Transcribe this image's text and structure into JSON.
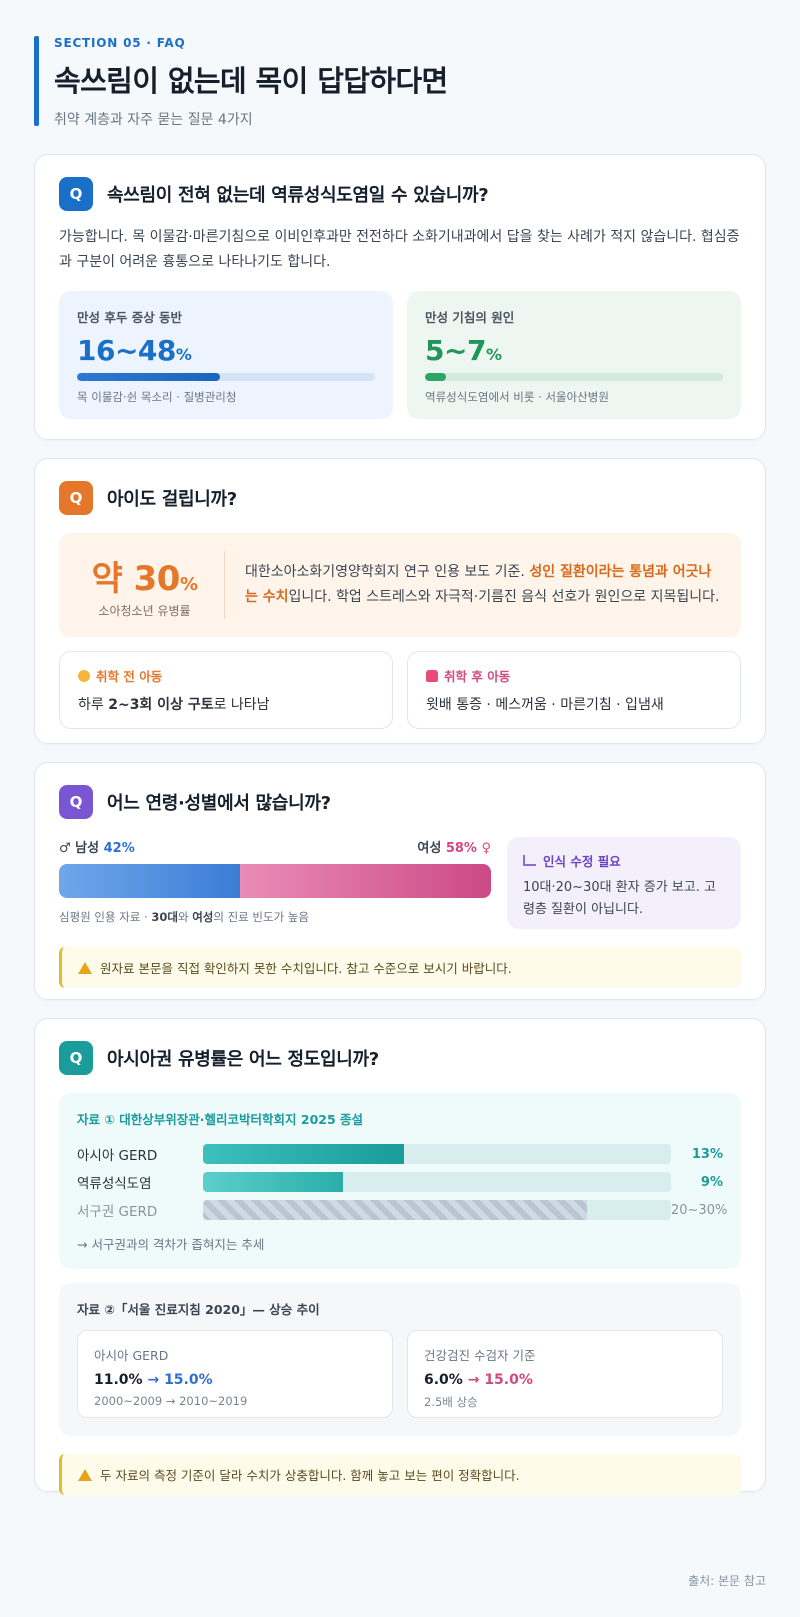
{
  "header": {
    "kicker": "SECTION 05 · FAQ",
    "title": "속쓰림이 없는데 목이 답답하다면",
    "subtitle": "취약 계층과 자주 묻는 질문 4가지"
  },
  "q1": {
    "badge": "Q",
    "title": "속쓰림이 전혀 없는데 역류성식도염일 수 있습니까?",
    "answer": "가능합니다. 목 이물감·마른기침으로 이비인후과만 전전하다 소화기내과에서 답을 찾는 사례가 적지 않습니다. 협심증과 구분이 어려운 흉통으로 나타나기도 합니다.",
    "stat_a": {
      "label": "만성 후두 증상 동반",
      "value": "16~48",
      "unit": "%",
      "fill_pct": 48,
      "source": "목 이물감·쉰 목소리 · 질병관리청"
    },
    "stat_b": {
      "label": "만성 기침의 원인",
      "value": "5~7",
      "unit": "%",
      "fill_pct": 7,
      "source": "역류성식도염에서 비롯 · 서울아산병원"
    }
  },
  "q2": {
    "badge": "Q",
    "title": "아이도 걸립니까?",
    "big_prefix": "약 30",
    "big_unit": "%",
    "big_caption": "소아청소년 유병률",
    "text_pre": "대한소아소화기영양학회지 연구 인용 보도 기준. ",
    "text_hl": "성인 질환이라는 통념과 어긋나는 수치",
    "text_post": "입니다. 학업 스트레스와 자극적·기름진 음식 선호가 원인으로 지목됩니다.",
    "pre_school": {
      "label": "취학 전 아동",
      "desc_pre": "하루 ",
      "desc_bold": "2~3회 이상 구토",
      "desc_post": "로 나타남"
    },
    "post_school": {
      "label": "취학 후 아동",
      "desc": "윗배 통증 · 메스꺼움 · 마른기침 · 입냄새"
    }
  },
  "q3": {
    "badge": "Q",
    "title": "어느 연령·성별에서 많습니까?",
    "male_label": "♂ 남성",
    "male_pct": 42,
    "male_text": "42%",
    "female_label": "여성",
    "female_pct": 58,
    "female_text": "58% ♀",
    "source_pre": "심평원 인용 자료 · ",
    "source_bold1": "30대",
    "source_mid": "와 ",
    "source_bold2": "여성",
    "source_post": "의 진료 빈도가 높음",
    "note_title": "인식 수정 필요",
    "note_text": "10대·20~30대 환자 증가 보고. 고령층 질환이 아닙니다.",
    "warning": "원자료 본문을 직접 확인하지 못한 수치입니다. 참고 수준으로 보시기 바랍니다."
  },
  "q4": {
    "badge": "Q",
    "title": "아시아권 유병률은 어느 정도입니까?",
    "source1_title": "자료 ① 대한상부위장관·헬리코박터학회지 2025 종설",
    "bars": [
      {
        "label": "아시아 GERD",
        "value": 13,
        "text": "13%"
      },
      {
        "label": "역류성식도염",
        "value": 9,
        "text": "9%"
      },
      {
        "label": "서구권 GERD",
        "value": 30,
        "text": "20~30%"
      }
    ],
    "trend": "→ 서구권과의 격차가 좁혀지는 추세",
    "source2_title": "자료 ②「서울 진료지침 2020」— 상승 추이",
    "box_a": {
      "label": "아시아 GERD",
      "from": "11.0%",
      "arrow": "→",
      "to": "15.0%",
      "sub": "2000~2009 → 2010~2019"
    },
    "box_b": {
      "label": "건강검진 수검자 기준",
      "from": "6.0%",
      "arrow": "→",
      "to": "15.0%",
      "sub": "2.5배 상승"
    },
    "warning": "두 자료의 측정 기준이 달라 수치가 상충합니다. 함께 놓고 보는 편이 정확합니다."
  },
  "footer": "출처: 본문 참고",
  "colors": {
    "blue": "#1a6fc8",
    "orange": "#e5772a",
    "purple": "#7a56d3",
    "teal": "#1a9c9a"
  }
}
